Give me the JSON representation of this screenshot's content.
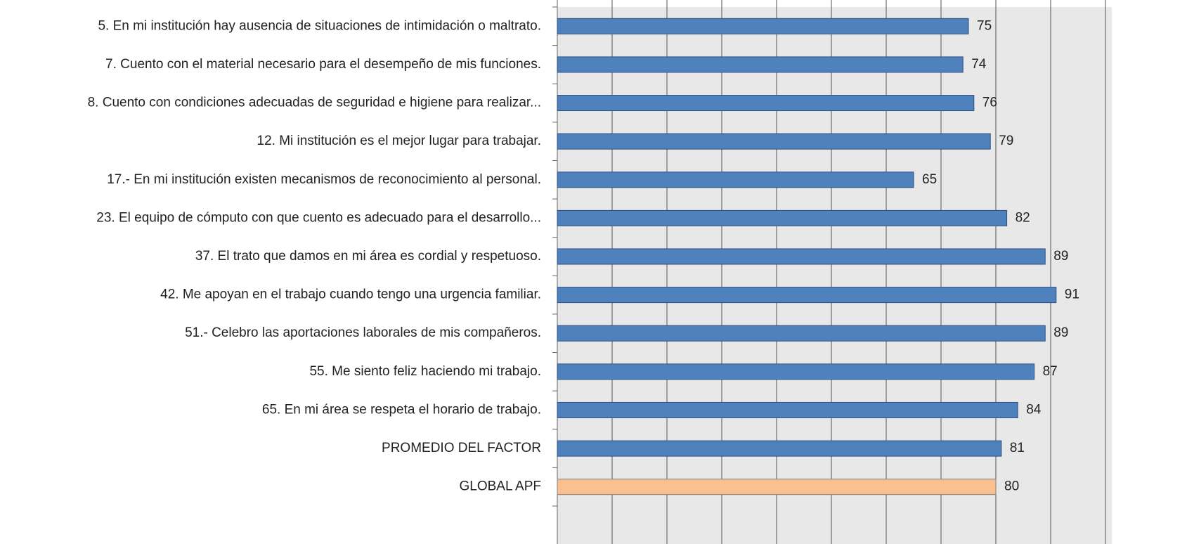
{
  "chart_data": {
    "type": "barh",
    "categories": [
      "5. En mi institución hay ausencia de situaciones de intimidación o maltrato.",
      "7. Cuento con el material necesario para el desempeño de mis funciones.",
      "8. Cuento con condiciones adecuadas de seguridad e higiene para realizar...",
      "12. Mi institución es el mejor lugar para trabajar.",
      "17.- En mi institución existen mecanismos de reconocimiento al personal.",
      "23. El equipo de cómputo con que cuento es adecuado para el desarrollo...",
      "37. El trato que damos en mi área es cordial y respetuoso.",
      "42. Me apoyan en el trabajo cuando tengo una urgencia familiar.",
      "51.- Celebro las aportaciones laborales de mis compañeros.",
      "55. Me siento feliz haciendo mi trabajo.",
      "65. En mi área se respeta el horario de trabajo.",
      "PROMEDIO DEL FACTOR",
      "GLOBAL APF"
    ],
    "values": [
      75,
      74,
      76,
      79,
      65,
      82,
      89,
      91,
      89,
      87,
      84,
      81,
      80
    ],
    "colors": [
      "#4f81bd",
      "#4f81bd",
      "#4f81bd",
      "#4f81bd",
      "#4f81bd",
      "#4f81bd",
      "#4f81bd",
      "#4f81bd",
      "#4f81bd",
      "#4f81bd",
      "#4f81bd",
      "#4f81bd",
      "#fac090"
    ],
    "xlim": [
      0,
      100
    ],
    "xticks": [
      0,
      10,
      20,
      30,
      40,
      50,
      60,
      70,
      80,
      90,
      100
    ],
    "grid": true
  }
}
